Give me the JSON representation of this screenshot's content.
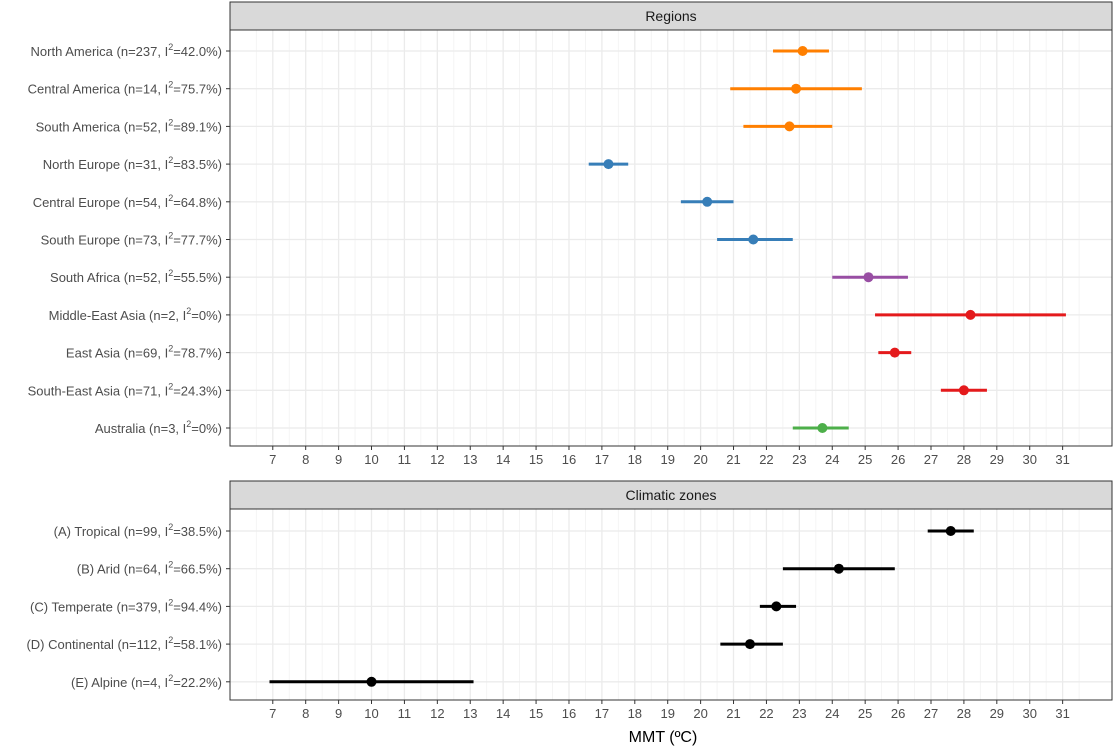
{
  "chart_data": [
    {
      "type": "forest",
      "panel": "Regions",
      "xlabel": "MMT (ºC)",
      "xlim": [
        5.7,
        32.5
      ],
      "xticks": [
        7,
        8,
        9,
        10,
        11,
        12,
        13,
        14,
        15,
        16,
        17,
        18,
        19,
        20,
        21,
        22,
        23,
        24,
        25,
        26,
        27,
        28,
        29,
        30,
        31
      ],
      "grid": true,
      "rows": [
        {
          "label": "North America (n=237, I",
          "label_suffix": "=42.0%)",
          "estimate": 23.1,
          "lower": 22.2,
          "upper": 23.9,
          "color": "#ff7f00"
        },
        {
          "label": "Central America (n=14, I",
          "label_suffix": "=75.7%)",
          "estimate": 22.9,
          "lower": 20.9,
          "upper": 24.9,
          "color": "#ff7f00"
        },
        {
          "label": "South America (n=52, I",
          "label_suffix": "=89.1%)",
          "estimate": 22.7,
          "lower": 21.3,
          "upper": 24.0,
          "color": "#ff7f00"
        },
        {
          "label": "North Europe (n=31, I",
          "label_suffix": "=83.5%)",
          "estimate": 17.2,
          "lower": 16.6,
          "upper": 17.8,
          "color": "#377eb8"
        },
        {
          "label": "Central Europe (n=54, I",
          "label_suffix": "=64.8%)",
          "estimate": 20.2,
          "lower": 19.4,
          "upper": 21.0,
          "color": "#377eb8"
        },
        {
          "label": "South Europe (n=73, I",
          "label_suffix": "=77.7%)",
          "estimate": 21.6,
          "lower": 20.5,
          "upper": 22.8,
          "color": "#377eb8"
        },
        {
          "label": "South Africa (n=52, I",
          "label_suffix": "=55.5%)",
          "estimate": 25.1,
          "lower": 24.0,
          "upper": 26.3,
          "color": "#984ea3"
        },
        {
          "label": "Middle-East Asia (n=2, I",
          "label_suffix": "=0%)",
          "estimate": 28.2,
          "lower": 25.3,
          "upper": 31.1,
          "color": "#e41a1c"
        },
        {
          "label": "East Asia (n=69, I",
          "label_suffix": "=78.7%)",
          "estimate": 25.9,
          "lower": 25.4,
          "upper": 26.4,
          "color": "#e41a1c"
        },
        {
          "label": "South-East Asia (n=71, I",
          "label_suffix": "=24.3%)",
          "estimate": 28.0,
          "lower": 27.3,
          "upper": 28.7,
          "color": "#e41a1c"
        },
        {
          "label": "Australia (n=3, I",
          "label_suffix": "=0%)",
          "estimate": 23.7,
          "lower": 22.8,
          "upper": 24.5,
          "color": "#4daf4a"
        }
      ]
    },
    {
      "type": "forest",
      "panel": "Climatic zones",
      "xlabel": "MMT (ºC)",
      "xlim": [
        5.7,
        32.5
      ],
      "xticks": [
        7,
        8,
        9,
        10,
        11,
        12,
        13,
        14,
        15,
        16,
        17,
        18,
        19,
        20,
        21,
        22,
        23,
        24,
        25,
        26,
        27,
        28,
        29,
        30,
        31
      ],
      "grid": true,
      "rows": [
        {
          "label": "(A) Tropical (n=99, I",
          "label_suffix": "=38.5%)",
          "estimate": 27.6,
          "lower": 26.9,
          "upper": 28.3,
          "color": "#000000"
        },
        {
          "label": "(B) Arid (n=64, I",
          "label_suffix": "=66.5%)",
          "estimate": 24.2,
          "lower": 22.5,
          "upper": 25.9,
          "color": "#000000"
        },
        {
          "label": "(C) Temperate (n=379, I",
          "label_suffix": "=94.4%)",
          "estimate": 22.3,
          "lower": 21.8,
          "upper": 22.9,
          "color": "#000000"
        },
        {
          "label": "(D) Continental (n=112, I",
          "label_suffix": "=58.1%)",
          "estimate": 21.5,
          "lower": 20.6,
          "upper": 22.5,
          "color": "#000000"
        },
        {
          "label": "(E) Alpine (n=4, I",
          "label_suffix": "=22.2%)",
          "estimate": 10.0,
          "lower": 6.9,
          "upper": 13.1,
          "color": "#000000"
        }
      ]
    }
  ],
  "superscript": "2",
  "xaxis_title": "MMT (ºC)"
}
